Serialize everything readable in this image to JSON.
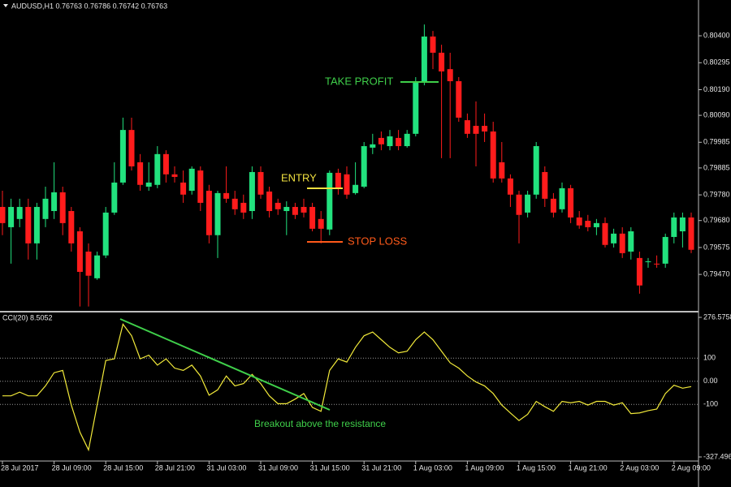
{
  "chart_data": [
    {
      "type": "candlestick",
      "title": "AUDUSD,H1  0.76763 0.76786 0.76742 0.76763",
      "up_color": "#22e27e",
      "down_color": "#ff1c1c",
      "open": [
        0.79733,
        0.79654,
        0.79686,
        0.79733,
        0.79591,
        0.79686,
        0.79717,
        0.7979,
        0.79717,
        0.79638,
        0.79559,
        0.79455,
        0.79544,
        0.79711,
        0.79828,
        0.80033,
        0.79907,
        0.79812,
        0.79819,
        0.79939,
        0.7986,
        0.79828,
        0.79796,
        0.79875,
        0.79796,
        0.79623,
        0.79787,
        0.79765,
        0.79749,
        0.79717,
        0.79869,
        0.79793,
        0.79749,
        0.79717,
        0.79733,
        0.79733,
        0.79733,
        0.79686,
        0.79645,
        0.79866,
        0.7986,
        0.79787,
        0.79812,
        0.79964,
        0.80002,
        0.7997,
        0.80002,
        0.7997,
        0.80018,
        0.80223,
        0.80397,
        0.80334,
        0.8027,
        0.80223,
        0.80071,
        0.80049,
        0.80049,
        0.80027,
        0.79907,
        0.79844,
        0.79781,
        0.79711,
        0.79781,
        0.79869,
        0.79765,
        0.79724,
        0.79806,
        0.79692,
        0.79679,
        0.79654,
        0.7967,
        0.79591,
        0.79629,
        0.79559,
        0.79534,
        0.79518,
        0.79512,
        0.79512,
        0.79616,
        0.79638,
        0.79692
      ],
      "high": [
        0.79796,
        0.79765,
        0.79765,
        0.79765,
        0.79749,
        0.79812,
        0.79907,
        0.79812,
        0.79733,
        0.79654,
        0.79591,
        0.79559,
        0.79733,
        0.79907,
        0.80081,
        0.80081,
        0.79939,
        0.79907,
        0.7997,
        0.79954,
        0.79891,
        0.79875,
        0.79891,
        0.79891,
        0.79819,
        0.79796,
        0.79891,
        0.79796,
        0.79781,
        0.79891,
        0.79891,
        0.79812,
        0.79765,
        0.79755,
        0.79749,
        0.79765,
        0.79749,
        0.79717,
        0.79875,
        0.79882,
        0.79891,
        0.79907,
        0.79986,
        0.80018,
        0.80027,
        0.80033,
        0.80033,
        0.80033,
        0.80239,
        0.80444,
        0.80419,
        0.80365,
        0.80334,
        0.80239,
        0.80097,
        0.80144,
        0.80097,
        0.80065,
        0.79986,
        0.7986,
        0.79796,
        0.79796,
        0.79986,
        0.79891,
        0.79787,
        0.79828,
        0.79819,
        0.79717,
        0.79702,
        0.79686,
        0.79692,
        0.79648,
        0.79654,
        0.79654,
        0.79559,
        0.79534,
        0.79544,
        0.79629,
        0.79711,
        0.79711,
        0.79711
      ],
      "low": [
        0.79623,
        0.79512,
        0.79654,
        0.79528,
        0.79528,
        0.79654,
        0.79686,
        0.79623,
        0.79559,
        0.79345,
        0.79345,
        0.79449,
        0.79534,
        0.79702,
        0.79819,
        0.79875,
        0.79796,
        0.79796,
        0.79806,
        0.79828,
        0.79828,
        0.79749,
        0.79781,
        0.79717,
        0.79591,
        0.79534,
        0.79749,
        0.79702,
        0.79686,
        0.79686,
        0.79765,
        0.79692,
        0.79702,
        0.79623,
        0.79686,
        0.79692,
        0.79638,
        0.79591,
        0.79623,
        0.79781,
        0.79765,
        0.79781,
        0.79806,
        0.79939,
        0.79954,
        0.79954,
        0.79954,
        0.79964,
        0.80008,
        0.80207,
        0.8027,
        0.79923,
        0.79923,
        0.80065,
        0.80002,
        0.79891,
        0.79986,
        0.79828,
        0.79828,
        0.79733,
        0.79591,
        0.79692,
        0.79765,
        0.79733,
        0.79692,
        0.79711,
        0.7967,
        0.79648,
        0.79638,
        0.79623,
        0.79575,
        0.79575,
        0.79534,
        0.79528,
        0.79395,
        0.79496,
        0.79496,
        0.79496,
        0.79591,
        0.79575,
        0.79553
      ],
      "close": [
        0.7967,
        0.79733,
        0.79733,
        0.79591,
        0.79733,
        0.79765,
        0.7979,
        0.7967,
        0.79591,
        0.7948,
        0.79465,
        0.79544,
        0.79711,
        0.79828,
        0.80033,
        0.79891,
        0.79819,
        0.79828,
        0.79939,
        0.7986,
        0.7985,
        0.79781,
        0.79882,
        0.79749,
        0.79623,
        0.79787,
        0.79765,
        0.79724,
        0.79711,
        0.79869,
        0.79781,
        0.79717,
        0.79724,
        0.79733,
        0.79702,
        0.79711,
        0.79648,
        0.79648,
        0.79866,
        0.79806,
        0.79781,
        0.79819,
        0.7997,
        0.79977,
        0.79977,
        0.80008,
        0.7997,
        0.80018,
        0.80223,
        0.80397,
        0.80334,
        0.80261,
        0.80223,
        0.80081,
        0.80018,
        0.80018,
        0.80027,
        0.79844,
        0.79844,
        0.79781,
        0.79702,
        0.79781,
        0.7997,
        0.79765,
        0.79711,
        0.79806,
        0.79692,
        0.79661,
        0.79654,
        0.7967,
        0.79585,
        0.79629,
        0.79553,
        0.79638,
        0.79427,
        0.79521,
        0.79509,
        0.79616,
        0.79692,
        0.79692,
        0.79566
      ],
      "ylim": [
        0.79328,
        0.80492
      ],
      "yticks": [
        {
          "value": 0.804,
          "label": "0.80400"
        },
        0.80295,
        {
          "value": 0.8019,
          "label": "0.80190"
        },
        {
          "value": 0.8009,
          "label": "0.80090"
        },
        0.79985,
        0.79885,
        {
          "value": 0.7978,
          "label": "0.79780"
        },
        {
          "value": 0.7968,
          "label": "0.79680"
        },
        0.79575,
        {
          "value": 0.7947,
          "label": "0.79470"
        }
      ],
      "annotations": [
        {
          "text": "TAKE PROFIT",
          "color": "#3fcf4a"
        },
        {
          "text": "ENTRY",
          "color": "#f0e040"
        },
        {
          "text": "STOP LOSS",
          "color": "#ff5a1a"
        }
      ]
    },
    {
      "type": "line",
      "title": "CCI(20) 8.5052",
      "color": "#f2ea3a",
      "values": [
        -63,
        -63,
        -47,
        -63,
        -63,
        -20,
        37,
        47,
        -103,
        -220,
        -297,
        -103,
        90,
        97,
        247,
        197,
        97,
        113,
        70,
        97,
        57,
        47,
        70,
        23,
        -60,
        -37,
        23,
        -20,
        -10,
        30,
        -10,
        -63,
        -97,
        -97,
        -77,
        -53,
        -113,
        -130,
        47,
        97,
        83,
        147,
        197,
        213,
        180,
        147,
        123,
        130,
        180,
        213,
        180,
        130,
        80,
        57,
        23,
        -3,
        -20,
        -53,
        -103,
        -137,
        -170,
        -143,
        -87,
        -110,
        -130,
        -87,
        -93,
        -87,
        -103,
        -87,
        -87,
        -103,
        -93,
        -140,
        -137,
        -127,
        -120,
        -53,
        -17,
        -30,
        -23
      ],
      "categories": [
        "28 Jul 2017",
        null,
        null,
        null,
        null,
        null,
        "28 Jul 09:00",
        null,
        null,
        null,
        null,
        null,
        "28 Jul 15:00",
        null,
        null,
        null,
        null,
        null,
        "28 Jul 21:00",
        null,
        null,
        null,
        null,
        null,
        "31 Jul 03:00",
        null,
        null,
        null,
        null,
        null,
        "31 Jul 09:00",
        null,
        null,
        null,
        null,
        null,
        "31 Jul 15:00",
        null,
        null,
        null,
        null,
        null,
        "31 Jul 21:00",
        null,
        null,
        null,
        null,
        null,
        "1 Aug 03:00",
        null,
        null,
        null,
        null,
        null,
        "1 Aug 09:00",
        null,
        null,
        null,
        null,
        null,
        "1 Aug 15:00",
        null,
        null,
        null,
        null,
        null,
        "1 Aug 21:00",
        null,
        null,
        null,
        null,
        null,
        "2 Aug 03:00",
        null,
        null,
        null,
        null,
        null,
        "2 Aug 09:00",
        null,
        null
      ],
      "ylim": [
        -327.4969,
        276.5758
      ],
      "yticks": [
        276.5758,
        100,
        {
          "value": 0,
          "label": "0.00"
        },
        -100,
        -327.4969
      ],
      "grid": true,
      "annotation": "Breakout above the resistance",
      "annotation_color": "#3fcf4a"
    }
  ]
}
